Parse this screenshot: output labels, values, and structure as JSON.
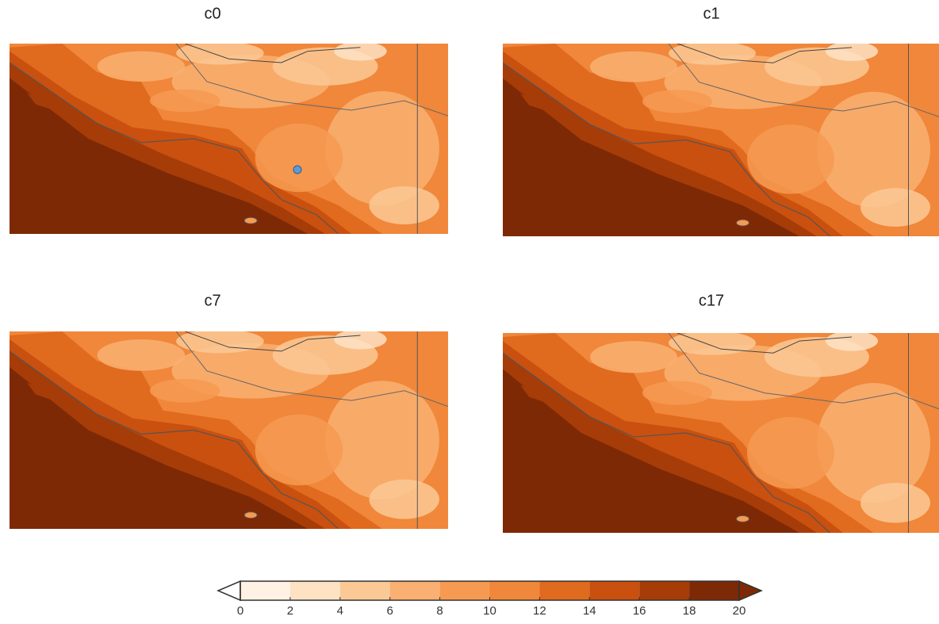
{
  "panels": [
    {
      "title": "c0"
    },
    {
      "title": "c1"
    },
    {
      "title": "c7"
    },
    {
      "title": "c17"
    }
  ],
  "colorbar": {
    "ticks": [
      0,
      2,
      4,
      6,
      8,
      10,
      12,
      14,
      16,
      18,
      20
    ],
    "colors": [
      "#fff2e4",
      "#fde2c4",
      "#fbc995",
      "#f9b072",
      "#f69a52",
      "#f0873a",
      "#e06a1e",
      "#c9500f",
      "#a63c08",
      "#7e2905"
    ]
  }
}
